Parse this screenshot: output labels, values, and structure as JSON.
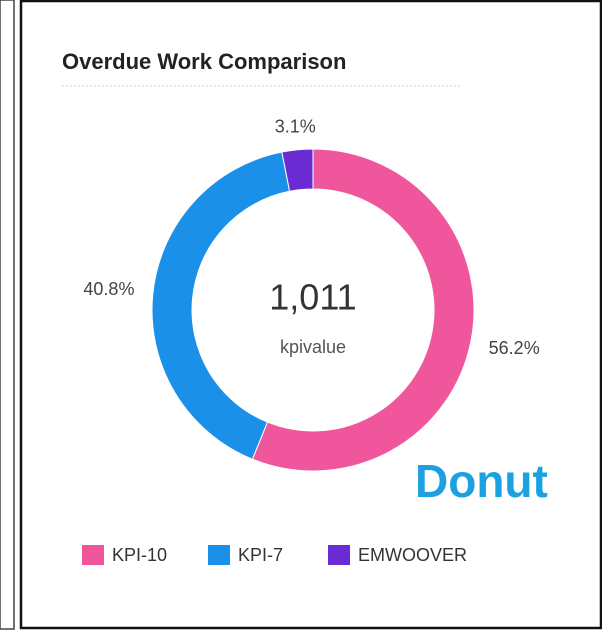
{
  "chart_data": {
    "type": "donut",
    "title": "Overdue Work Comparison",
    "categories": [
      "KPI-10",
      "KPI-7",
      "EMWOOVER"
    ],
    "values": [
      56.2,
      40.8,
      3.1
    ],
    "value_labels": [
      "56.2%",
      "40.8%",
      "3.1%"
    ],
    "colors": [
      "#f0569b",
      "#1a90e8",
      "#6a2bd2"
    ],
    "center_value": "1,011",
    "center_label": "kpivalue",
    "annotation": "Donut",
    "legend": "bottom"
  }
}
